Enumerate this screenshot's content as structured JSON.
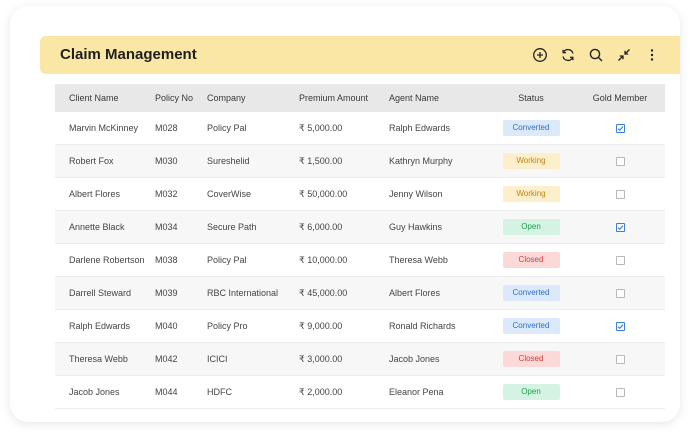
{
  "header": {
    "title": "Claim Management",
    "actions": [
      {
        "icon": "add-circle-icon"
      },
      {
        "icon": "refresh-icon"
      },
      {
        "icon": "search-icon"
      },
      {
        "icon": "collapse-icon"
      },
      {
        "icon": "more-vertical-icon"
      }
    ],
    "background": "#fae7a6"
  },
  "table": {
    "columns": [
      "Client Name",
      "Policy No",
      "Company",
      "Premium Amount",
      "Agent Name",
      "Status",
      "Gold Member"
    ],
    "rows": [
      {
        "client": "Marvin McKinney",
        "policy": "M028",
        "company": "Policy Pal",
        "premium": "₹ 5,000.00",
        "agent": "Ralph Edwards",
        "status": "Converted",
        "status_type": "converted",
        "gold": true
      },
      {
        "client": "Robert Fox",
        "policy": "M030",
        "company": "Sureshelid",
        "premium": "₹ 1,500.00",
        "agent": "Kathryn Murphy",
        "status": "Working",
        "status_type": "working",
        "gold": false
      },
      {
        "client": "Albert Flores",
        "policy": "M032",
        "company": "CoverWise",
        "premium": "₹ 50,000.00",
        "agent": "Jenny Wilson",
        "status": "Working",
        "status_type": "working",
        "gold": false
      },
      {
        "client": "Annette Black",
        "policy": "M034",
        "company": "Secure Path",
        "premium": "₹ 6,000.00",
        "agent": "Guy Hawkins",
        "status": "Open",
        "status_type": "open",
        "gold": true
      },
      {
        "client": "Darlene Robertson",
        "policy": "M038",
        "company": "Policy Pal",
        "premium": "₹ 10,000.00",
        "agent": "Theresa Webb",
        "status": "Closed",
        "status_type": "closed",
        "gold": false
      },
      {
        "client": "Darrell Steward",
        "policy": "M039",
        "company": "RBC International",
        "premium": "₹ 45,000.00",
        "agent": "Albert Flores",
        "status": "Converted",
        "status_type": "converted",
        "gold": false
      },
      {
        "client": "Ralph Edwards",
        "policy": "M040",
        "company": "Policy Pro",
        "premium": "₹ 9,000.00",
        "agent": "Ronald Richards",
        "status": "Converted",
        "status_type": "converted",
        "gold": true
      },
      {
        "client": "Theresa Webb",
        "policy": "M042",
        "company": "ICICI",
        "premium": "₹ 3,000.00",
        "agent": "Jacob Jones",
        "status": "Closed",
        "status_type": "closed",
        "gold": false
      },
      {
        "client": "Jacob Jones",
        "policy": "M044",
        "company": "HDFC",
        "premium": "₹ 2,000.00",
        "agent": "Eleanor Pena",
        "status": "Open",
        "status_type": "open",
        "gold": false
      }
    ]
  }
}
